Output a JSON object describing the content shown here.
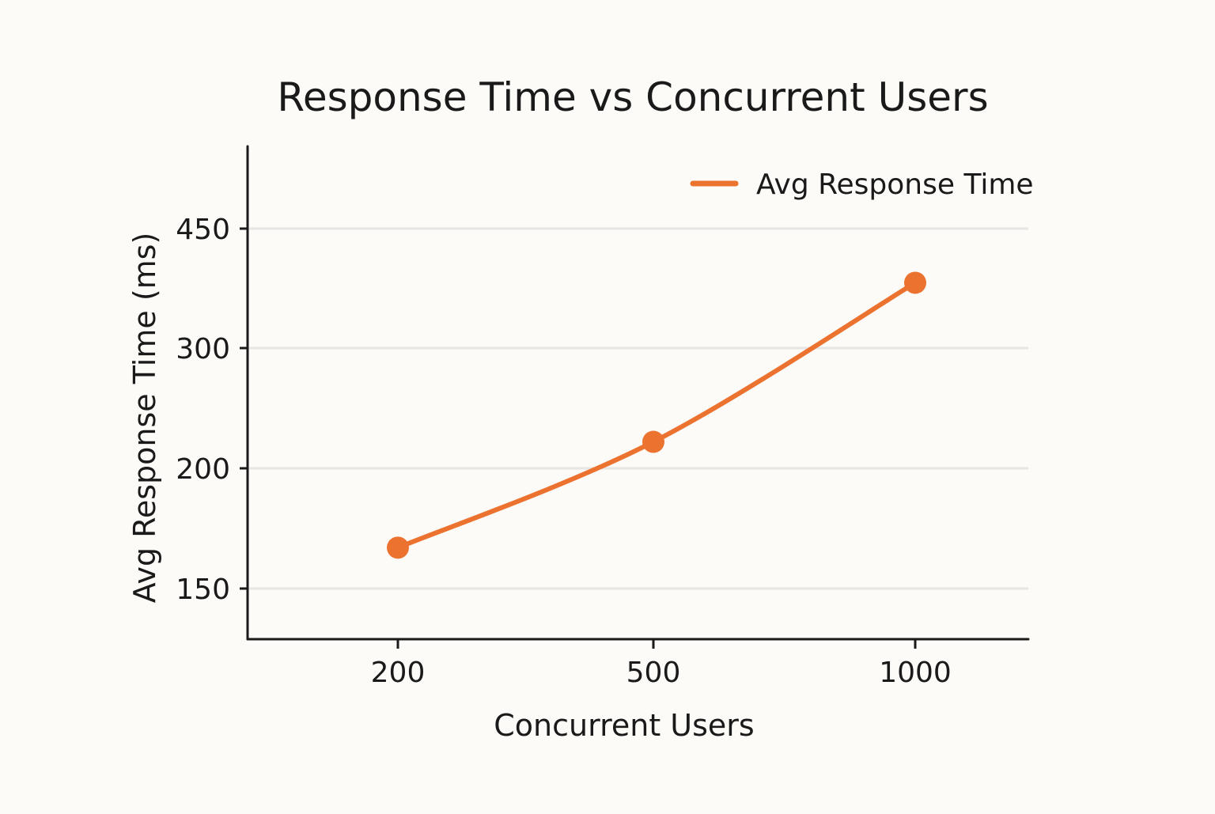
{
  "chart_data": {
    "type": "line",
    "title": "Response Time vs Concurrent Users",
    "xlabel": "Concurrent Users",
    "ylabel": "Avg Response Time (ms)",
    "categories": [
      "200",
      "500",
      "1000"
    ],
    "series": [
      {
        "name": "Avg Response Time",
        "values": [
          167,
          222,
          382
        ],
        "color": "#ec7230"
      }
    ],
    "y_ticks": [
      150,
      200,
      300,
      450
    ],
    "ylim": [
      129,
      503
    ],
    "grid": true,
    "legend_position": "top-right"
  }
}
